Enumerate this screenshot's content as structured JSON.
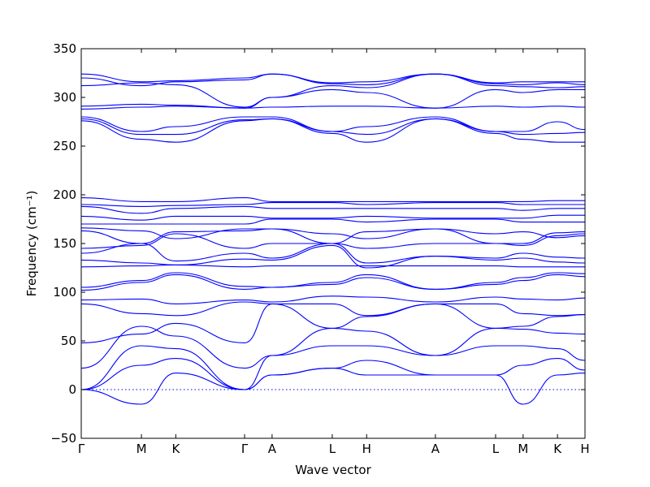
{
  "chart_data": {
    "type": "line",
    "xlabel": "Wave vector",
    "ylabel": "Frequency (cm⁻¹)",
    "ylim": [
      -50,
      350
    ],
    "y_ticks": [
      -50,
      0,
      50,
      100,
      150,
      200,
      250,
      300,
      350
    ],
    "y_tick_labels": [
      "−50",
      "0",
      "50",
      "100",
      "150",
      "200",
      "250",
      "300",
      "350"
    ],
    "xlim": [
      0,
      14.0
    ],
    "path": [
      {
        "label": "Γ",
        "x": 0.0
      },
      {
        "label": "M",
        "x": 1.75
      },
      {
        "label": "K",
        "x": 2.75
      },
      {
        "label": "Γ",
        "x": 4.75
      },
      {
        "label": "A",
        "x": 5.55
      },
      {
        "label": "L",
        "x": 7.3
      },
      {
        "label": "H",
        "x": 8.3
      },
      {
        "label": "A",
        "x": 10.3
      },
      {
        "label": "L",
        "x": 12.05
      },
      {
        "label": "M",
        "x": 12.85
      },
      {
        "label": "K",
        "x": 13.85
      },
      {
        "label": "H",
        "x": 14.65
      }
    ],
    "grid": false,
    "legend": "none",
    "line_color": "#0000ff",
    "zero_line": 0,
    "series": [
      {
        "x": [
          0,
          1.75,
          2.75,
          4.75,
          5.55,
          7.3,
          8.3,
          10.3,
          12.05,
          12.85,
          13.85,
          14.65
        ],
        "values": [
          0,
          -15,
          17,
          0,
          15,
          22,
          15,
          15,
          15,
          -15,
          15,
          17
        ]
      },
      {
        "x": [
          0,
          1.75,
          2.75,
          4.75,
          5.55,
          7.3,
          8.3,
          10.3,
          12.05,
          12.85,
          13.85,
          14.65
        ],
        "values": [
          0,
          25,
          32,
          0,
          15,
          22,
          30,
          15,
          15,
          25,
          32,
          20
        ]
      },
      {
        "x": [
          0,
          1.75,
          2.75,
          4.75,
          5.55,
          7.3,
          8.3,
          10.3,
          12.05,
          12.85,
          13.85,
          14.65
        ],
        "values": [
          0,
          45,
          42,
          0,
          35,
          45,
          45,
          35,
          45,
          45,
          42,
          30
        ]
      },
      {
        "x": [
          0,
          1.75,
          2.75,
          4.75,
          5.55,
          7.3,
          8.3,
          10.3,
          12.05,
          12.85,
          13.85,
          14.65
        ],
        "values": [
          22,
          65,
          55,
          22,
          35,
          63,
          60,
          35,
          63,
          62,
          58,
          57
        ]
      },
      {
        "x": [
          0,
          1.75,
          2.75,
          4.75,
          5.55,
          7.3,
          8.3,
          10.3,
          12.05,
          12.85,
          13.85,
          14.65
        ],
        "values": [
          48,
          57,
          68,
          48,
          88,
          63,
          75,
          88,
          63,
          65,
          75,
          77
        ]
      },
      {
        "x": [
          0,
          1.75,
          2.75,
          4.75,
          5.55,
          7.3,
          8.3,
          10.3,
          12.05,
          12.85,
          13.85,
          14.65
        ],
        "values": [
          88,
          78,
          76,
          90,
          88,
          88,
          76,
          88,
          88,
          78,
          76,
          77
        ]
      },
      {
        "x": [
          0,
          1.75,
          2.75,
          4.75,
          5.55,
          7.3,
          8.3,
          10.3,
          12.05,
          12.85,
          13.85,
          14.65
        ],
        "values": [
          92,
          93,
          88,
          92,
          90,
          96,
          95,
          90,
          95,
          93,
          92,
          94
        ]
      },
      {
        "x": [
          0,
          1.75,
          2.75,
          4.75,
          5.55,
          7.3,
          8.3,
          10.3,
          12.05,
          12.85,
          13.85,
          14.65
        ],
        "values": [
          102,
          110,
          118,
          103,
          105,
          108,
          115,
          103,
          108,
          112,
          118,
          116
        ]
      },
      {
        "x": [
          0,
          1.75,
          2.75,
          4.75,
          5.55,
          7.3,
          8.3,
          10.3,
          12.05,
          12.85,
          13.85,
          14.65
        ],
        "values": [
          105,
          112,
          120,
          106,
          105,
          110,
          118,
          103,
          110,
          115,
          120,
          119
        ]
      },
      {
        "x": [
          0,
          1.75,
          2.75,
          4.75,
          5.55,
          7.3,
          8.3,
          10.3,
          12.05,
          12.85,
          13.85,
          14.65
        ],
        "values": [
          126,
          127,
          128,
          126,
          127,
          127,
          127,
          127,
          127,
          126,
          126,
          126
        ]
      },
      {
        "x": [
          0,
          1.75,
          2.75,
          4.75,
          5.55,
          7.3,
          8.3,
          10.3,
          12.05,
          12.85,
          13.85,
          14.65
        ],
        "values": [
          133,
          130,
          128,
          134,
          133,
          148,
          125,
          137,
          133,
          135,
          131,
          130
        ]
      },
      {
        "x": [
          0,
          1.75,
          2.75,
          4.75,
          5.55,
          7.3,
          8.3,
          10.3,
          12.05,
          12.85,
          13.85,
          14.65
        ],
        "values": [
          140,
          150,
          132,
          140,
          135,
          150,
          130,
          137,
          135,
          140,
          136,
          135
        ]
      },
      {
        "x": [
          0,
          1.75,
          2.75,
          4.75,
          5.55,
          7.3,
          8.3,
          10.3,
          12.05,
          12.85,
          13.85,
          14.65
        ],
        "values": [
          145,
          148,
          160,
          145,
          150,
          150,
          145,
          150,
          150,
          148,
          158,
          160
        ]
      },
      {
        "x": [
          0,
          1.75,
          2.75,
          4.75,
          5.55,
          7.3,
          8.3,
          10.3,
          12.05,
          12.85,
          13.85,
          14.65
        ],
        "values": [
          163,
          150,
          162,
          163,
          165,
          150,
          162,
          165,
          150,
          150,
          161,
          162
        ]
      },
      {
        "x": [
          0,
          1.75,
          2.75,
          4.75,
          5.55,
          7.3,
          8.3,
          10.3,
          12.05,
          12.85,
          13.85,
          14.65
        ],
        "values": [
          166,
          163,
          155,
          165,
          165,
          160,
          155,
          165,
          160,
          162,
          156,
          158
        ]
      },
      {
        "x": [
          0,
          1.75,
          2.75,
          4.75,
          5.55,
          7.3,
          8.3,
          10.3,
          12.05,
          12.85,
          13.85,
          14.65
        ],
        "values": [
          170,
          170,
          170,
          170,
          175,
          175,
          172,
          175,
          175,
          172,
          172,
          172
        ]
      },
      {
        "x": [
          0,
          1.75,
          2.75,
          4.75,
          5.55,
          7.3,
          8.3,
          10.3,
          12.05,
          12.85,
          13.85,
          14.65
        ],
        "values": [
          178,
          174,
          178,
          178,
          176,
          176,
          178,
          176,
          176,
          176,
          179,
          179
        ]
      },
      {
        "x": [
          0,
          1.75,
          2.75,
          4.75,
          5.55,
          7.3,
          8.3,
          10.3,
          12.05,
          12.85,
          13.85,
          14.65
        ],
        "values": [
          188,
          181,
          186,
          188,
          186,
          186,
          186,
          186,
          186,
          184,
          186,
          186
        ]
      },
      {
        "x": [
          0,
          1.75,
          2.75,
          4.75,
          5.55,
          7.3,
          8.3,
          10.3,
          12.05,
          12.85,
          13.85,
          14.65
        ],
        "values": [
          190,
          188,
          189,
          190,
          192,
          192,
          190,
          192,
          192,
          190,
          190,
          190
        ]
      },
      {
        "x": [
          0,
          1.75,
          2.75,
          4.75,
          5.55,
          7.3,
          8.3,
          10.3,
          12.05,
          12.85,
          13.85,
          14.65
        ],
        "values": [
          197,
          193,
          193,
          197,
          193,
          193,
          193,
          193,
          193,
          193,
          194,
          194
        ]
      },
      {
        "x": [
          0,
          1.75,
          2.75,
          4.75,
          5.55,
          7.3,
          8.3,
          10.3,
          12.05,
          12.85,
          13.85,
          14.65
        ],
        "values": [
          276,
          257,
          254,
          276,
          278,
          263,
          254,
          278,
          263,
          257,
          254,
          254
        ]
      },
      {
        "x": [
          0,
          1.75,
          2.75,
          4.75,
          5.55,
          7.3,
          8.3,
          10.3,
          12.05,
          12.85,
          13.85,
          14.65
        ],
        "values": [
          278,
          262,
          262,
          277,
          278,
          265,
          262,
          278,
          265,
          262,
          263,
          264
        ]
      },
      {
        "x": [
          0,
          1.75,
          2.75,
          4.75,
          5.55,
          7.3,
          8.3,
          10.3,
          12.05,
          12.85,
          13.85,
          14.65
        ],
        "values": [
          280,
          265,
          270,
          280,
          280,
          265,
          270,
          280,
          265,
          265,
          275,
          267
        ]
      },
      {
        "x": [
          0,
          1.75,
          2.75,
          4.75,
          5.55,
          7.3,
          8.3,
          10.3,
          12.05,
          12.85,
          13.85,
          14.65
        ],
        "values": [
          288,
          290,
          291,
          289,
          290,
          291,
          291,
          289,
          291,
          290,
          291,
          290
        ]
      },
      {
        "x": [
          0,
          1.75,
          2.75,
          4.75,
          5.55,
          7.3,
          8.3,
          10.3,
          12.05,
          12.85,
          13.85,
          14.65
        ],
        "values": [
          291,
          293,
          292,
          289,
          300,
          308,
          305,
          289,
          308,
          305,
          308,
          308
        ]
      },
      {
        "x": [
          0,
          1.75,
          2.75,
          4.75,
          5.55,
          7.3,
          8.3,
          10.3,
          12.05,
          12.85,
          13.85,
          14.65
        ],
        "values": [
          312,
          315,
          313,
          290,
          300,
          312,
          310,
          324,
          312,
          311,
          310,
          311
        ]
      },
      {
        "x": [
          0,
          1.75,
          2.75,
          4.75,
          5.55,
          7.3,
          8.3,
          10.3,
          12.05,
          12.85,
          13.85,
          14.65
        ],
        "values": [
          320,
          312,
          316,
          318,
          324,
          314,
          313,
          324,
          314,
          313,
          315,
          313
        ]
      },
      {
        "x": [
          0,
          1.75,
          2.75,
          4.75,
          5.55,
          7.3,
          8.3,
          10.3,
          12.05,
          12.85,
          13.85,
          14.65
        ],
        "values": [
          324,
          316,
          317,
          320,
          324,
          315,
          316,
          324,
          315,
          316,
          316,
          316
        ]
      }
    ]
  }
}
